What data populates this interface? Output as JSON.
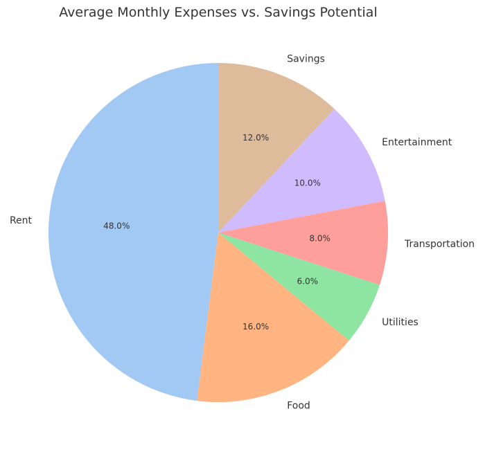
{
  "chart_data": {
    "type": "pie",
    "title": "Average Monthly Expenses vs. Savings Potential",
    "start_angle_deg": 90,
    "direction": "counterclockwise",
    "legend": "none",
    "slices": [
      {
        "label": "Rent",
        "value": 48.0,
        "pct_label": "48.0%",
        "color": "#a1c9f4"
      },
      {
        "label": "Food",
        "value": 16.0,
        "pct_label": "16.0%",
        "color": "#ffb482"
      },
      {
        "label": "Utilities",
        "value": 6.0,
        "pct_label": "6.0%",
        "color": "#8de5a1"
      },
      {
        "label": "Transportation",
        "value": 8.0,
        "pct_label": "8.0%",
        "color": "#ff9f9b"
      },
      {
        "label": "Entertainment",
        "value": 10.0,
        "pct_label": "10.0%",
        "color": "#d0bbff"
      },
      {
        "label": "Savings",
        "value": 12.0,
        "pct_label": "12.0%",
        "color": "#debb9b"
      }
    ]
  }
}
